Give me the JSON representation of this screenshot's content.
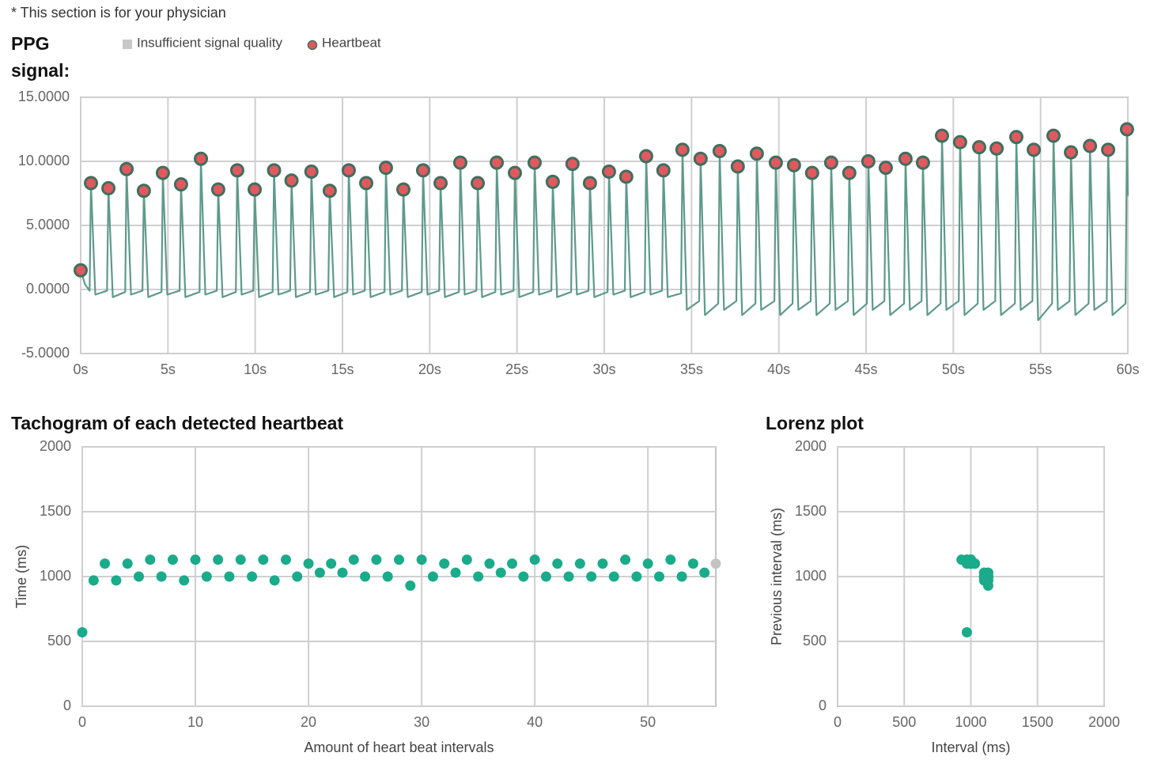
{
  "header": "* This section is for your physician",
  "chart_data": [
    {
      "type": "line",
      "title": "PPG signal:",
      "legend": true,
      "xlim": [
        0,
        60
      ],
      "ylim": [
        -5,
        15
      ],
      "xticks": [
        {
          "value": 0,
          "label": "0s"
        },
        {
          "value": 5,
          "label": "5s"
        },
        {
          "value": 10,
          "label": "10s"
        },
        {
          "value": 15,
          "label": "15s"
        },
        {
          "value": 20,
          "label": "20s"
        },
        {
          "value": 25,
          "label": "25s"
        },
        {
          "value": 30,
          "label": "30s"
        },
        {
          "value": 35,
          "label": "35s"
        },
        {
          "value": 40,
          "label": "40s"
        },
        {
          "value": 45,
          "label": "45s"
        },
        {
          "value": 50,
          "label": "50s"
        },
        {
          "value": 55,
          "label": "55s"
        },
        {
          "value": 60,
          "label": "60s"
        }
      ],
      "yticks": [
        {
          "value": -5,
          "label": "-5.0000"
        },
        {
          "value": 0,
          "label": "0.0000"
        },
        {
          "value": 5,
          "label": "5.0000"
        },
        {
          "value": 10,
          "label": "10.0000"
        },
        {
          "value": 15,
          "label": "15.0000"
        }
      ],
      "grid": true,
      "series": [
        {
          "mode": "line",
          "color": "#5e9a8a",
          "x": [
            0,
            0.25,
            0.51,
            0.59,
            0.84,
            1.51,
            1.59,
            1.84,
            2.55,
            2.63,
            2.88,
            3.54,
            3.62,
            3.87,
            4.63,
            4.71,
            4.96,
            5.67,
            5.75,
            6,
            6.81,
            6.89,
            7.14,
            7.8,
            7.88,
            8.13,
            8.89,
            8.97,
            9.22,
            9.89,
            9.97,
            10.22,
            11,
            11.08,
            11.33,
            12,
            12.08,
            12.33,
            13.14,
            13.22,
            13.47,
            14.19,
            14.27,
            14.52,
            15.28,
            15.36,
            15.61,
            16.28,
            16.36,
            16.61,
            17.41,
            17.49,
            17.74,
            18.41,
            18.49,
            18.74,
            19.54,
            19.62,
            19.87,
            20.54,
            20.62,
            20.87,
            21.67,
            21.75,
            22,
            22.67,
            22.75,
            23,
            23.76,
            23.84,
            24.09,
            24.8,
            24.88,
            25.13,
            25.93,
            26.01,
            26.26,
            26.97,
            27.05,
            27.3,
            28.1,
            28.18,
            28.43,
            29.1,
            29.18,
            29.43,
            30.19,
            30.27,
            30.52,
            31.18,
            31.26,
            31.51,
            32.32,
            32.4,
            32.65,
            33.31,
            33.39,
            33.64,
            34.4,
            34.48,
            34.73,
            35.44,
            35.52,
            35.77,
            36.53,
            36.61,
            36.86,
            37.57,
            37.65,
            37.9,
            38.66,
            38.74,
            38.99,
            39.75,
            39.83,
            40.08,
            40.79,
            40.87,
            41.12,
            41.83,
            41.91,
            42.16,
            42.92,
            43,
            43.25,
            43.96,
            44.04,
            44.29,
            45.05,
            45.13,
            45.38,
            46.05,
            46.13,
            46.38,
            47.18,
            47.26,
            47.51,
            48.18,
            48.26,
            48.51,
            49.27,
            49.35,
            49.6,
            50.31,
            50.39,
            50.64,
            51.4,
            51.48,
            51.73,
            52.4,
            52.48,
            52.73,
            53.53,
            53.61,
            53.86,
            54.53,
            54.61,
            54.86,
            55.66,
            55.74,
            55.99,
            56.66,
            56.74,
            56.99,
            57.75,
            57.83,
            58.08,
            58.79,
            58.87,
            59.12,
            59.87,
            59.95,
            60
          ],
          "values": [
            1.5,
            0.4,
            -0.1,
            8.3,
            -0.4,
            -0.1,
            7.9,
            -0.6,
            -0.2,
            9.4,
            -0.4,
            -0.1,
            7.7,
            -0.6,
            -0.2,
            9.1,
            -0.4,
            -0.1,
            8.2,
            -0.6,
            -0.2,
            10.2,
            -0.4,
            -0.1,
            7.8,
            -0.6,
            -0.2,
            9.3,
            -0.4,
            -0.1,
            7.8,
            -0.6,
            -0.2,
            9.3,
            -0.4,
            -0.1,
            8.5,
            -0.6,
            -0.2,
            9.2,
            -0.4,
            -0.1,
            7.7,
            -0.6,
            -0.2,
            9.3,
            -0.4,
            -0.1,
            8.3,
            -0.6,
            -0.2,
            9.5,
            -0.4,
            -0.1,
            7.8,
            -0.6,
            -0.2,
            9.3,
            -0.4,
            -0.1,
            8.3,
            -0.6,
            -0.2,
            9.9,
            -0.4,
            -0.1,
            8.3,
            -0.6,
            -0.2,
            9.9,
            -0.4,
            -0.1,
            9.1,
            -0.6,
            -0.2,
            9.9,
            -0.4,
            -0.1,
            8.4,
            -0.6,
            -0.2,
            9.8,
            -0.4,
            -0.1,
            8.3,
            -0.6,
            -0.2,
            9.2,
            -0.4,
            -0.1,
            8.8,
            -0.6,
            -0.2,
            10.4,
            -0.4,
            -0.1,
            9.3,
            -0.6,
            -0.3,
            10.9,
            -1.6,
            -0.9,
            10.2,
            -2.0,
            -1.1,
            10.8,
            -1.6,
            -0.9,
            9.6,
            -2.0,
            -1.1,
            10.6,
            -1.6,
            -0.9,
            9.9,
            -2.0,
            -1.1,
            9.7,
            -1.6,
            -0.9,
            9.1,
            -2.0,
            -1.1,
            9.9,
            -1.6,
            -0.9,
            9.1,
            -2.0,
            -1.1,
            10,
            -1.6,
            -0.9,
            9.5,
            -2.0,
            -1.1,
            10.2,
            -1.6,
            -0.9,
            9.9,
            -2.0,
            -1.1,
            12,
            -1.6,
            -0.9,
            11.5,
            -2.0,
            -1.1,
            11.1,
            -1.6,
            -0.9,
            11,
            -2.0,
            -1.1,
            11.9,
            -1.6,
            -0.9,
            10.9,
            -2.4,
            -1.1,
            12,
            -1.6,
            -0.9,
            10.7,
            -2.0,
            -1.1,
            11.2,
            -1.6,
            -0.9,
            10.9,
            -2.0,
            -1.1,
            12.5,
            7.3
          ]
        },
        {
          "name": "Insufficient signal quality",
          "mode": "square",
          "color": "#c8c8c8",
          "x": [],
          "values": []
        },
        {
          "name": "Heartbeat",
          "mode": "markers",
          "color": "#e0595e",
          "edge_color": "#3f6e5f",
          "x": [
            0,
            0.59,
            1.59,
            2.63,
            3.62,
            4.71,
            5.75,
            6.89,
            7.88,
            8.97,
            9.97,
            11.08,
            12.08,
            13.22,
            14.27,
            15.36,
            16.36,
            17.49,
            18.49,
            19.62,
            20.62,
            21.75,
            22.75,
            23.84,
            24.88,
            26.01,
            27.05,
            28.18,
            29.18,
            30.27,
            31.26,
            32.4,
            33.39,
            34.48,
            35.52,
            36.61,
            37.65,
            38.74,
            39.83,
            40.87,
            41.91,
            43,
            44.04,
            45.13,
            46.13,
            47.26,
            48.26,
            49.35,
            50.39,
            51.48,
            52.48,
            53.61,
            54.61,
            55.74,
            56.74,
            57.83,
            58.87,
            59.95
          ],
          "values": [
            1.5,
            8.3,
            7.9,
            9.4,
            7.7,
            9.1,
            8.2,
            10.2,
            7.8,
            9.3,
            7.8,
            9.3,
            8.5,
            9.2,
            7.7,
            9.3,
            8.3,
            9.5,
            7.8,
            9.3,
            8.3,
            9.9,
            8.3,
            9.9,
            9.1,
            9.9,
            8.4,
            9.8,
            8.3,
            9.2,
            8.8,
            10.4,
            9.3,
            10.9,
            10.2,
            10.8,
            9.6,
            10.6,
            9.9,
            9.7,
            9.1,
            9.9,
            9.1,
            10,
            9.5,
            10.2,
            9.9,
            12,
            11.5,
            11.1,
            11,
            11.9,
            10.9,
            12,
            10.7,
            11.2,
            10.9,
            12.5
          ]
        }
      ]
    },
    {
      "type": "scatter",
      "title": "Tachogram of each detected heartbeat",
      "xlabel": "Amount of heart beat intervals",
      "ylabel": "Time (ms)",
      "xlim": [
        0,
        56
      ],
      "ylim": [
        0,
        2000
      ],
      "xticks": [
        0,
        10,
        20,
        30,
        40,
        50
      ],
      "yticks": [
        0,
        500,
        1000,
        1500,
        2000
      ],
      "grid": true,
      "series": [
        {
          "mode": "markers",
          "color": "#1aab8b",
          "x": [
            0,
            1,
            2,
            3,
            4,
            5,
            6,
            7,
            8,
            9,
            10,
            11,
            12,
            13,
            14,
            15,
            16,
            17,
            18,
            19,
            20,
            21,
            22,
            23,
            24,
            25,
            26,
            27,
            28,
            29,
            30,
            31,
            32,
            33,
            34,
            35,
            36,
            37,
            38,
            39,
            40,
            41,
            42,
            43,
            44,
            45,
            46,
            47,
            48,
            49,
            50,
            51,
            52,
            53,
            54,
            55
          ],
          "values": [
            570,
            970,
            1100,
            970,
            1100,
            1000,
            1130,
            1000,
            1130,
            970,
            1130,
            1000,
            1130,
            1000,
            1130,
            1000,
            1130,
            970,
            1130,
            1000,
            1100,
            1030,
            1100,
            1030,
            1130,
            1000,
            1130,
            1000,
            1130,
            930,
            1130,
            1000,
            1100,
            1030,
            1130,
            1000,
            1100,
            1030,
            1100,
            1000,
            1130,
            1000,
            1100,
            1000,
            1100,
            1000,
            1100,
            1000,
            1130,
            1000,
            1100,
            1000,
            1130,
            1000,
            1100,
            1030
          ]
        },
        {
          "mode": "markers",
          "color": "#c4c4c4",
          "x": [
            56
          ],
          "values": [
            1100
          ]
        }
      ]
    },
    {
      "type": "scatter",
      "title": "Lorenz plot",
      "xlabel": "Interval (ms)",
      "ylabel": "Previous interval (ms)",
      "xlim": [
        0,
        2000
      ],
      "ylim": [
        0,
        2000
      ],
      "xticks": [
        0,
        500,
        1000,
        1500,
        2000
      ],
      "yticks": [
        0,
        500,
        1000,
        1500,
        2000
      ],
      "grid": true,
      "series": [
        {
          "mode": "markers",
          "color": "#1aab8b",
          "x": [
            970,
            1100,
            970,
            1100,
            1000,
            1130,
            1000,
            1130,
            970,
            1130,
            1000,
            1130,
            1000,
            1130,
            1000,
            1130,
            970,
            1130,
            1000,
            1100,
            1030,
            1100,
            1030,
            1130,
            1000,
            1130,
            1000,
            1130,
            930,
            1130,
            1000,
            1100,
            1030,
            1130,
            1000,
            1100,
            1030,
            1100,
            1000,
            1130,
            1000,
            1100,
            1000,
            1100,
            1000,
            1100,
            1000,
            1130,
            1000,
            1100,
            1000,
            1130,
            1000,
            1100,
            1030
          ],
          "values": [
            570,
            970,
            1100,
            970,
            1100,
            1000,
            1130,
            1000,
            1130,
            970,
            1130,
            1000,
            1130,
            1000,
            1130,
            1000,
            1130,
            970,
            1130,
            1000,
            1100,
            1030,
            1100,
            1030,
            1130,
            1000,
            1130,
            1000,
            1130,
            930,
            1130,
            1000,
            1100,
            1030,
            1130,
            1000,
            1100,
            1030,
            1100,
            1000,
            1130,
            1000,
            1100,
            1000,
            1100,
            1000,
            1100,
            1000,
            1130,
            1000,
            1100,
            1000,
            1130,
            1000,
            1100
          ]
        }
      ]
    }
  ]
}
